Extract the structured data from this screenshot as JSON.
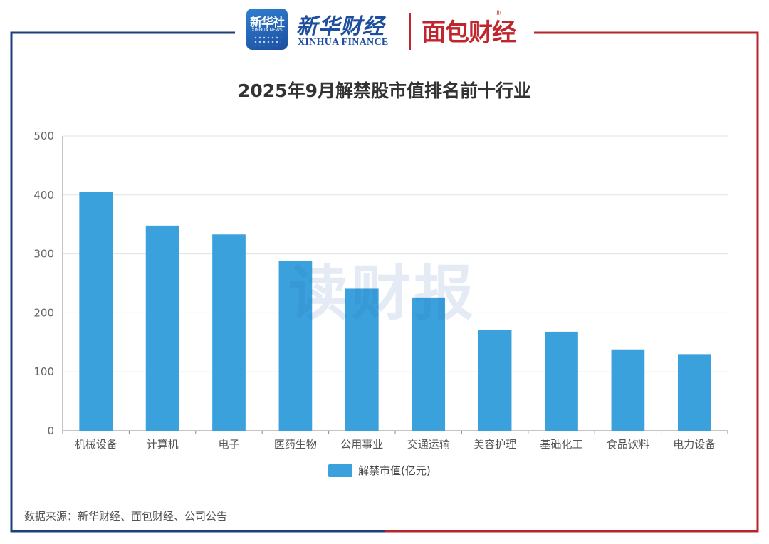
{
  "header": {
    "xinhua_box_label": "新华社",
    "xinhua_box_sub": "XINHUA NEWS",
    "xinhua_finance_cn": "新华财经",
    "xinhua_finance_en": "XINHUA FINANCE",
    "mianbao_label": "面包财经",
    "registered_mark": "®"
  },
  "watermark": "读财报",
  "source_note": "数据来源：新华财经、面包财经、公司公告",
  "colors": {
    "bar": "#3ba1dc",
    "frame_left": "#1d3f7a",
    "frame_right": "#b5262e"
  },
  "chart_data": {
    "type": "bar",
    "title": "2025年9月解禁股市值排名前十行业",
    "categories": [
      "机械设备",
      "计算机",
      "电子",
      "医药生物",
      "公用事业",
      "交通运输",
      "美容护理",
      "基础化工",
      "食品饮料",
      "电力设备"
    ],
    "series": [
      {
        "name": "解禁市值(亿元)",
        "values": [
          405,
          348,
          333,
          288,
          241,
          226,
          171,
          168,
          138,
          130
        ]
      }
    ],
    "ylim": [
      0,
      500
    ],
    "yticks": [
      0,
      100,
      200,
      300,
      400,
      500
    ],
    "grid": true,
    "legend_position": "bottom"
  }
}
